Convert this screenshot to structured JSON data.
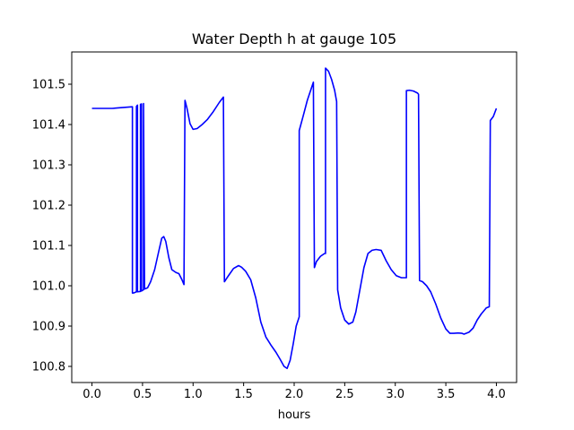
{
  "chart_data": {
    "type": "line",
    "title": "Water Depth h at gauge 105",
    "xlabel": "hours",
    "ylabel": "",
    "xlim": [
      -0.2,
      4.2
    ],
    "ylim": [
      100.76,
      101.58
    ],
    "xticks": [
      0.0,
      0.5,
      1.0,
      1.5,
      2.0,
      2.5,
      3.0,
      3.5,
      4.0
    ],
    "xtick_labels": [
      "0.0",
      "0.5",
      "1.0",
      "1.5",
      "2.0",
      "2.5",
      "3.0",
      "3.5",
      "4.0"
    ],
    "yticks": [
      100.8,
      100.9,
      101.0,
      101.1,
      101.2,
      101.3,
      101.4,
      101.5
    ],
    "ytick_labels": [
      "100.8",
      "100.9",
      "101.0",
      "101.1",
      "101.2",
      "101.3",
      "101.4",
      "101.5"
    ],
    "grid": false,
    "legend": "none",
    "series": [
      {
        "color": "#0000ff",
        "x": [
          0.0,
          0.1,
          0.2,
          0.3,
          0.4,
          0.4,
          0.41,
          0.44,
          0.44,
          0.45,
          0.45,
          0.48,
          0.48,
          0.49,
          0.49,
          0.51,
          0.51,
          0.52,
          0.55,
          0.58,
          0.62,
          0.66,
          0.69,
          0.71,
          0.73,
          0.76,
          0.79,
          0.83,
          0.86,
          0.89,
          0.91,
          0.92,
          0.94,
          0.97,
          1.0,
          1.04,
          1.09,
          1.14,
          1.2,
          1.26,
          1.3,
          1.31,
          1.35,
          1.4,
          1.45,
          1.48,
          1.52,
          1.57,
          1.62,
          1.67,
          1.72,
          1.77,
          1.82,
          1.86,
          1.9,
          1.93,
          1.96,
          1.99,
          2.02,
          2.05,
          2.05,
          2.09,
          2.13,
          2.17,
          2.19,
          2.2,
          2.22,
          2.26,
          2.3,
          2.31,
          2.31,
          2.34,
          2.37,
          2.4,
          2.42,
          2.43,
          2.46,
          2.5,
          2.54,
          2.58,
          2.61,
          2.65,
          2.69,
          2.73,
          2.77,
          2.81,
          2.86,
          2.91,
          2.96,
          3.01,
          3.06,
          3.11,
          3.11,
          3.14,
          3.18,
          3.22,
          3.23,
          3.24,
          3.27,
          3.31,
          3.35,
          3.4,
          3.45,
          3.5,
          3.54,
          3.58,
          3.62,
          3.66,
          3.68,
          3.7,
          3.73,
          3.77,
          3.81,
          3.85,
          3.9,
          3.93,
          3.94,
          3.97,
          4.0
        ],
        "y": [
          101.44,
          101.44,
          101.44,
          101.442,
          101.444,
          100.982,
          100.982,
          100.985,
          101.445,
          101.448,
          100.985,
          100.986,
          101.45,
          101.451,
          100.987,
          100.99,
          101.452,
          100.992,
          100.995,
          101.01,
          101.04,
          101.085,
          101.118,
          101.122,
          101.11,
          101.07,
          101.04,
          101.033,
          101.03,
          101.015,
          101.003,
          101.46,
          101.44,
          101.402,
          101.388,
          101.39,
          101.4,
          101.412,
          101.432,
          101.455,
          101.468,
          101.01,
          101.025,
          101.043,
          101.05,
          101.046,
          101.036,
          101.015,
          100.97,
          100.91,
          100.873,
          100.853,
          100.835,
          100.818,
          100.8,
          100.795,
          100.815,
          100.855,
          100.9,
          100.923,
          101.385,
          101.422,
          101.46,
          101.49,
          101.505,
          101.045,
          101.06,
          101.073,
          101.08,
          101.08,
          101.54,
          101.532,
          101.512,
          101.485,
          101.457,
          100.99,
          100.945,
          100.915,
          100.905,
          100.91,
          100.935,
          100.99,
          101.045,
          101.08,
          101.088,
          101.09,
          101.088,
          101.062,
          101.04,
          101.025,
          101.02,
          101.02,
          101.484,
          101.485,
          101.483,
          101.478,
          101.475,
          101.013,
          101.01,
          101.0,
          100.985,
          100.955,
          100.92,
          100.893,
          100.882,
          100.882,
          100.883,
          100.882,
          100.88,
          100.882,
          100.885,
          100.895,
          100.915,
          100.93,
          100.945,
          100.948,
          101.41,
          101.42,
          101.44
        ]
      }
    ]
  }
}
